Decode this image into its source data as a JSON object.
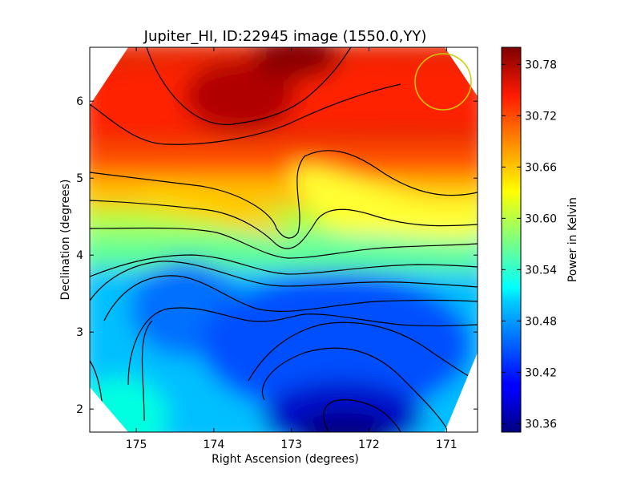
{
  "chart_data": {
    "type": "heatmap",
    "title": "Jupiter_HI, ID:22945 image (1550.0,YY)",
    "xlabel": "Right Ascension (degrees)",
    "ylabel": "Declination (degrees)",
    "colorbar_label": "Power in Kelvin",
    "xlim": [
      175.6,
      170.6
    ],
    "ylim": [
      1.7,
      6.7
    ],
    "x_ticks": [
      "175",
      "174",
      "173",
      "172",
      "171"
    ],
    "y_ticks": [
      "2",
      "3",
      "4",
      "5",
      "6"
    ],
    "colorbar_range": [
      30.35,
      30.8
    ],
    "colorbar_ticks": [
      "30.36",
      "30.42",
      "30.48",
      "30.54",
      "30.60",
      "30.66",
      "30.72",
      "30.78"
    ],
    "colormap": "jet",
    "grid": false,
    "contours": true,
    "beam_marker": {
      "ra": 171.0,
      "dec": 6.25,
      "radius_deg": 0.36,
      "color": "#cccc00"
    },
    "hotspots": [
      {
        "ra": 172.9,
        "dec": 6.6,
        "value": 30.8
      },
      {
        "ra": 173.7,
        "dec": 6.0,
        "value": 30.79
      },
      {
        "ra": 172.3,
        "dec": 5.0,
        "value": 30.66
      },
      {
        "ra": 174.3,
        "dec": 3.4,
        "value": 30.45
      },
      {
        "ra": 172.3,
        "dec": 2.0,
        "value": 30.36
      }
    ]
  }
}
